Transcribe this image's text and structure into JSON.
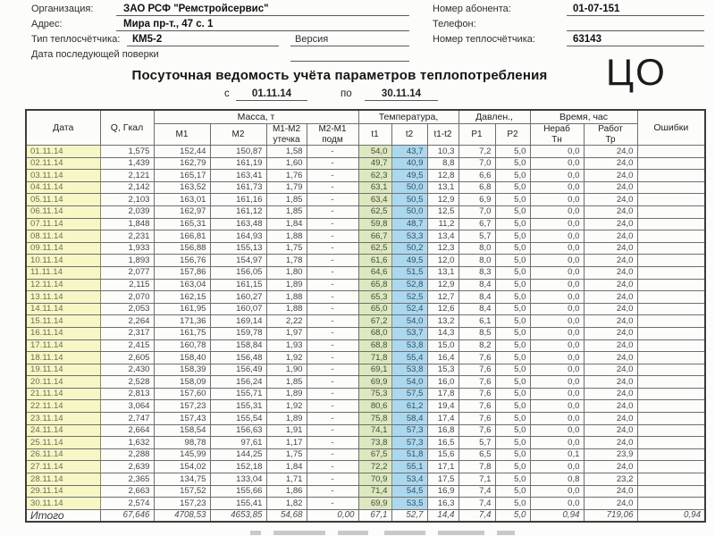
{
  "form": {
    "org_label": "Организация:",
    "org_value": "ЗАО РСФ \"Ремстройсервис\"",
    "address_label": "Адрес:",
    "address_value": "Мира пр-т., 47 с. 1",
    "meter_type_label": "Тип теплосчётчика:",
    "meter_type_value": "КМ5-2",
    "version_label": "Версия",
    "next_check_label": "Дата последующей поверки",
    "subscriber_label": "Номер абонента:",
    "subscriber_value": "01-07-151",
    "phone_label": "Телефон:",
    "phone_value": "",
    "meter_number_label": "Номер теплосчётчика:",
    "meter_number_value": "63143"
  },
  "title": {
    "text": "Посуточная ведомость учёта параметров теплопотребления",
    "badge": "ЦО",
    "period_from_label": "с",
    "period_from": "01.11.14",
    "period_to_label": "по",
    "period_to": "30.11.14"
  },
  "colors": {
    "date_cell": "#f7f7c6",
    "t1_cell": "#dde8c0",
    "t2_cell": "#abd8ef"
  },
  "table": {
    "group_mass": "Масса, т",
    "group_temp": "Температура,",
    "group_press": "Давлен.,",
    "group_time": "Время, час",
    "col_date": "Дата",
    "col_q": "Q, Гкал",
    "col_m1": "М1",
    "col_m2": "М2",
    "col_leak": "М1-М2\nутечка",
    "col_podm": "М2-М1\nподм",
    "col_t1": "t1",
    "col_t2": "t2",
    "col_dt": "t1-t2",
    "col_p1": "Р1",
    "col_p2": "Р2",
    "col_tn": "Нераб\nТн",
    "col_tr": "Работ\nТр",
    "col_err": "Ошибки",
    "total_label": "Итого",
    "rows": [
      [
        "01.11.14",
        "1,575",
        "152,44",
        "150,87",
        "1,58",
        "-",
        "54,0",
        "43,7",
        "10,3",
        "7,2",
        "5,0",
        "0,0",
        "24,0",
        ""
      ],
      [
        "02.11.14",
        "1,439",
        "162,79",
        "161,19",
        "1,60",
        "-",
        "49,7",
        "40,9",
        "8,8",
        "7,0",
        "5,0",
        "0,0",
        "24,0",
        ""
      ],
      [
        "03.11.14",
        "2,121",
        "165,17",
        "163,41",
        "1,76",
        "-",
        "62,3",
        "49,5",
        "12,8",
        "6,6",
        "5,0",
        "0,0",
        "24,0",
        ""
      ],
      [
        "04.11.14",
        "2,142",
        "163,52",
        "161,73",
        "1,79",
        "-",
        "63,1",
        "50,0",
        "13,1",
        "6,8",
        "5,0",
        "0,0",
        "24,0",
        ""
      ],
      [
        "05.11.14",
        "2,103",
        "163,01",
        "161,16",
        "1,85",
        "-",
        "63,4",
        "50,5",
        "12,9",
        "6,9",
        "5,0",
        "0,0",
        "24,0",
        ""
      ],
      [
        "06.11.14",
        "2,039",
        "162,97",
        "161,12",
        "1,85",
        "-",
        "62,5",
        "50,0",
        "12,5",
        "7,0",
        "5,0",
        "0,0",
        "24,0",
        ""
      ],
      [
        "07.11.14",
        "1,848",
        "165,31",
        "163,48",
        "1,84",
        "-",
        "59,8",
        "48,7",
        "11,2",
        "6,7",
        "5,0",
        "0,0",
        "24,0",
        ""
      ],
      [
        "08.11.14",
        "2,231",
        "166,81",
        "164,93",
        "1,88",
        "-",
        "66,7",
        "53,3",
        "13,4",
        "5,7",
        "5,0",
        "0,0",
        "24,0",
        ""
      ],
      [
        "09.11.14",
        "1,933",
        "156,88",
        "155,13",
        "1,75",
        "-",
        "62,5",
        "50,2",
        "12,3",
        "8,0",
        "5,0",
        "0,0",
        "24,0",
        ""
      ],
      [
        "10.11.14",
        "1,893",
        "156,76",
        "154,97",
        "1,78",
        "-",
        "61,6",
        "49,5",
        "12,0",
        "8,0",
        "5,0",
        "0,0",
        "24,0",
        ""
      ],
      [
        "11.11.14",
        "2,077",
        "157,86",
        "156,05",
        "1,80",
        "-",
        "64,6",
        "51,5",
        "13,1",
        "8,3",
        "5,0",
        "0,0",
        "24,0",
        ""
      ],
      [
        "12.11.14",
        "2,115",
        "163,04",
        "161,15",
        "1,89",
        "-",
        "65,8",
        "52,8",
        "12,9",
        "8,4",
        "5,0",
        "0,0",
        "24,0",
        ""
      ],
      [
        "13.11.14",
        "2,070",
        "162,15",
        "160,27",
        "1,88",
        "-",
        "65,3",
        "52,5",
        "12,7",
        "8,4",
        "5,0",
        "0,0",
        "24,0",
        ""
      ],
      [
        "14.11.14",
        "2,053",
        "161,95",
        "160,07",
        "1,88",
        "-",
        "65,0",
        "52,4",
        "12,6",
        "8,4",
        "5,0",
        "0,0",
        "24,0",
        ""
      ],
      [
        "15.11.14",
        "2,264",
        "171,36",
        "169,14",
        "2,22",
        "-",
        "67,2",
        "54,0",
        "13,2",
        "6,1",
        "5,0",
        "0,0",
        "24,0",
        ""
      ],
      [
        "16.11.14",
        "2,317",
        "161,75",
        "159,78",
        "1,97",
        "-",
        "68,0",
        "53,7",
        "14,3",
        "8,5",
        "5,0",
        "0,0",
        "24,0",
        ""
      ],
      [
        "17.11.14",
        "2,415",
        "160,78",
        "158,84",
        "1,93",
        "-",
        "68,8",
        "53,8",
        "15,0",
        "8,2",
        "5,0",
        "0,0",
        "24,0",
        ""
      ],
      [
        "18.11.14",
        "2,605",
        "158,40",
        "156,48",
        "1,92",
        "-",
        "71,8",
        "55,4",
        "16,4",
        "7,6",
        "5,0",
        "0,0",
        "24,0",
        ""
      ],
      [
        "19.11.14",
        "2,430",
        "158,39",
        "156,49",
        "1,90",
        "-",
        "69,1",
        "53,8",
        "15,3",
        "7,6",
        "5,0",
        "0,0",
        "24,0",
        ""
      ],
      [
        "20.11.14",
        "2,528",
        "158,09",
        "156,24",
        "1,85",
        "-",
        "69,9",
        "54,0",
        "16,0",
        "7,6",
        "5,0",
        "0,0",
        "24,0",
        ""
      ],
      [
        "21.11.14",
        "2,813",
        "157,60",
        "155,71",
        "1,89",
        "-",
        "75,3",
        "57,5",
        "17,8",
        "7,6",
        "5,0",
        "0,0",
        "24,0",
        ""
      ],
      [
        "22.11.14",
        "3,064",
        "157,23",
        "155,31",
        "1,92",
        "-",
        "80,6",
        "61,2",
        "19,4",
        "7,6",
        "5,0",
        "0,0",
        "24,0",
        ""
      ],
      [
        "23.11.14",
        "2,747",
        "157,43",
        "155,54",
        "1,89",
        "-",
        "75,8",
        "58,4",
        "17,4",
        "7,6",
        "5,0",
        "0,0",
        "24,0",
        ""
      ],
      [
        "24.11.14",
        "2,664",
        "158,54",
        "156,63",
        "1,91",
        "-",
        "74,1",
        "57,3",
        "16,8",
        "7,6",
        "5,0",
        "0,0",
        "24,0",
        ""
      ],
      [
        "25.11.14",
        "1,632",
        "98,78",
        "97,61",
        "1,17",
        "-",
        "73,8",
        "57,3",
        "16,5",
        "5,7",
        "5,0",
        "0,0",
        "24,0",
        ""
      ],
      [
        "26.11.14",
        "2,288",
        "145,99",
        "144,25",
        "1,75",
        "-",
        "67,5",
        "51,8",
        "15,6",
        "6,5",
        "5,0",
        "0,1",
        "23,9",
        ""
      ],
      [
        "27.11.14",
        "2,639",
        "154,02",
        "152,18",
        "1,84",
        "-",
        "72,2",
        "55,1",
        "17,1",
        "7,8",
        "5,0",
        "0,0",
        "24,0",
        ""
      ],
      [
        "28.11.14",
        "2,365",
        "134,75",
        "133,04",
        "1,71",
        "-",
        "70,9",
        "53,4",
        "17,5",
        "7,1",
        "5,0",
        "0,8",
        "23,2",
        ""
      ],
      [
        "29.11.14",
        "2,663",
        "157,52",
        "155,66",
        "1,86",
        "-",
        "71,4",
        "54,5",
        "16,9",
        "7,4",
        "5,0",
        "0,0",
        "24,0",
        ""
      ],
      [
        "30.11.14",
        "2,574",
        "157,23",
        "155,41",
        "1,82",
        "-",
        "69,9",
        "53,5",
        "16,3",
        "7,4",
        "5,0",
        "0,0",
        "24,0",
        ""
      ]
    ],
    "total": [
      "Итого",
      "67,646",
      "4708,53",
      "4653,85",
      "54,68",
      "0,00",
      "67,1",
      "52,7",
      "14,4",
      "7,4",
      "5,0",
      "0,94",
      "719,06",
      "0,94"
    ]
  }
}
